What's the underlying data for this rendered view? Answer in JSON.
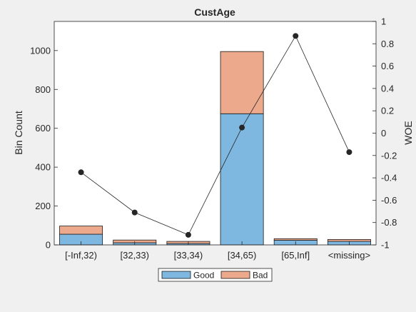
{
  "chart_data": {
    "type": "bar",
    "title": "CustAge",
    "ylabel_left": "Bin Count",
    "ylabel_right": "WOE",
    "categories": [
      "[-Inf,32)",
      "[32,33)",
      "[33,34)",
      "[34,65)",
      "[65,Inf]",
      "<missing>"
    ],
    "stacked": true,
    "series": [
      {
        "name": "Good",
        "color": "#7eb8e0",
        "values": [
          55,
          11,
          7,
          675,
          24,
          18
        ]
      },
      {
        "name": "Bad",
        "color": "#eca98c",
        "values": [
          42,
          14,
          11,
          320,
          8,
          10
        ]
      }
    ],
    "line_series": {
      "axis": "right",
      "color": "#262626",
      "values": [
        -0.35,
        -0.71,
        -0.91,
        0.05,
        0.87,
        -0.17
      ]
    },
    "ylim_left": [
      0,
      1150
    ],
    "yticks_left": [
      0,
      200,
      400,
      600,
      800,
      1000
    ],
    "ylim_right": [
      -1,
      1
    ],
    "yticks_right": [
      -1,
      -0.8,
      -0.6,
      -0.4,
      -0.2,
      0,
      0.2,
      0.4,
      0.6,
      0.8,
      1
    ],
    "yticklabels_right": [
      "-1",
      "-0.8",
      "-0.6",
      "-0.4",
      "-0.2",
      "0",
      "0.2",
      "0.4",
      "0.6",
      "0.8",
      "1"
    ],
    "grid": false,
    "legend": {
      "placement": "bottom",
      "entries": [
        "Good",
        "Bad"
      ]
    }
  }
}
